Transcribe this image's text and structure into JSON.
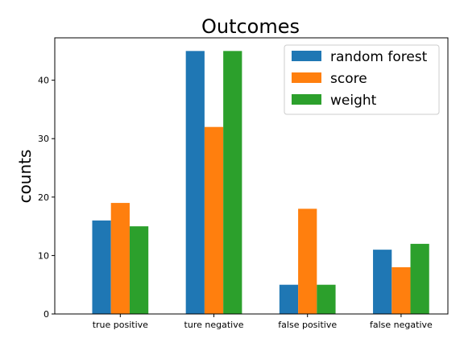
{
  "chart_data": {
    "type": "bar",
    "title": "Outcomes",
    "xlabel": "",
    "ylabel": "counts",
    "categories": [
      "true positive",
      "ture negative",
      "false positive",
      "false negative"
    ],
    "series": [
      {
        "name": "random forest",
        "color": "#1f77b4",
        "values": [
          16,
          45,
          5,
          11
        ]
      },
      {
        "name": "score",
        "color": "#ff7f0e",
        "values": [
          19,
          32,
          18,
          8
        ]
      },
      {
        "name": "weight",
        "color": "#2ca02c",
        "values": [
          15,
          45,
          5,
          12
        ]
      }
    ],
    "ylim": [
      0,
      47.25
    ],
    "yticks": [
      0,
      10,
      20,
      30,
      40
    ],
    "grid": false,
    "legend_position": "top-right"
  }
}
